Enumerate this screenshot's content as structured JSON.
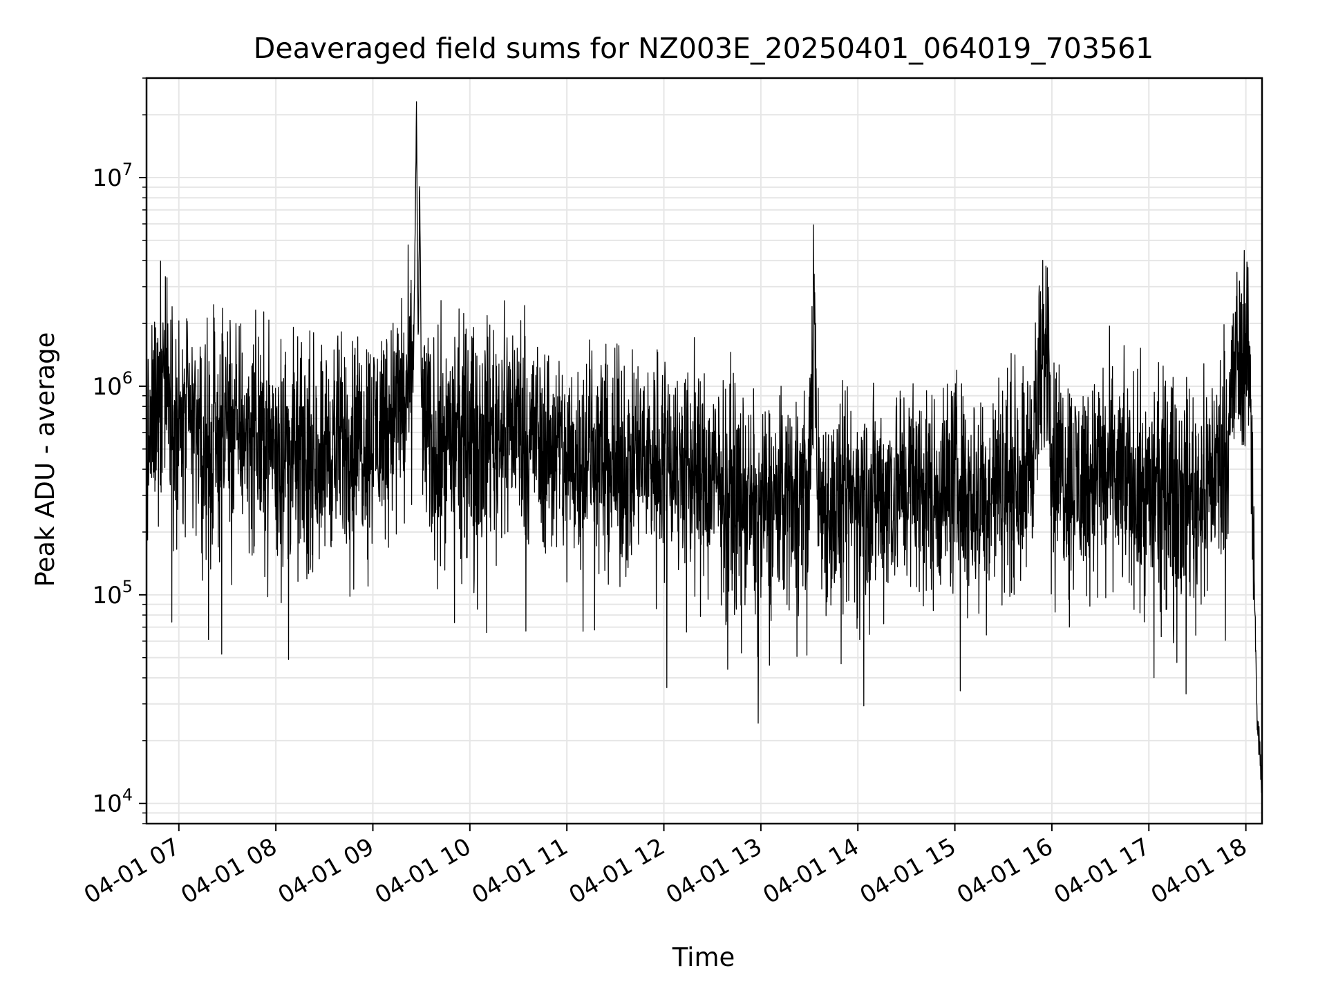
{
  "chart_data": {
    "type": "line",
    "title": "Deaveraged field sums for NZ003E_20250401_064019_703561",
    "xlabel": "Time",
    "ylabel": "Peak ADU - average",
    "yscale": "log",
    "ylim": [
      8000,
      30000000
    ],
    "xlim": [
      "2025-04-01 06:40",
      "2025-04-01 18:10"
    ],
    "grid": true,
    "line_color": "#000000",
    "grid_color": "#e6e6e6",
    "x_ticks": [
      "04-01 07",
      "04-01 08",
      "04-01 09",
      "04-01 10",
      "04-01 11",
      "04-01 12",
      "04-01 13",
      "04-01 14",
      "04-01 15",
      "04-01 16",
      "04-01 17",
      "04-01 18"
    ],
    "y_ticks": [
      {
        "value": 10000,
        "base": "10",
        "exp": "4"
      },
      {
        "value": 100000,
        "base": "10",
        "exp": "5"
      },
      {
        "value": 1000000,
        "base": "10",
        "exp": "6"
      },
      {
        "value": 10000000,
        "base": "10",
        "exp": "7"
      }
    ],
    "series": [
      {
        "x": [
          "2025-04-01 06:40",
          "2025-04-01 06:45",
          "2025-04-01 06:50",
          "2025-04-01 06:55",
          "2025-04-01 07:00",
          "2025-04-01 07:10",
          "2025-04-01 07:20",
          "2025-04-01 07:30",
          "2025-04-01 07:45",
          "2025-04-01 08:00",
          "2025-04-01 08:15",
          "2025-04-01 08:30",
          "2025-04-01 08:45",
          "2025-04-01 09:00",
          "2025-04-01 09:15",
          "2025-04-01 09:25",
          "2025-04-01 09:27",
          "2025-04-01 09:28",
          "2025-04-01 09:29",
          "2025-04-01 09:30",
          "2025-04-01 09:35",
          "2025-04-01 09:45",
          "2025-04-01 10:00",
          "2025-04-01 10:15",
          "2025-04-01 10:30",
          "2025-04-01 10:45",
          "2025-04-01 11:00",
          "2025-04-01 11:15",
          "2025-04-01 11:30",
          "2025-04-01 11:45",
          "2025-04-01 12:00",
          "2025-04-01 12:15",
          "2025-04-01 12:30",
          "2025-04-01 12:45",
          "2025-04-01 13:00",
          "2025-04-01 13:15",
          "2025-04-01 13:30",
          "2025-04-01 13:33",
          "2025-04-01 13:35",
          "2025-04-01 13:45",
          "2025-04-01 14:00",
          "2025-04-01 14:15",
          "2025-04-01 14:30",
          "2025-04-01 14:45",
          "2025-04-01 15:00",
          "2025-04-01 15:15",
          "2025-04-01 15:30",
          "2025-04-01 15:45",
          "2025-04-01 15:58",
          "2025-04-01 16:00",
          "2025-04-01 16:15",
          "2025-04-01 16:30",
          "2025-04-01 16:45",
          "2025-04-01 17:00",
          "2025-04-01 17:15",
          "2025-04-01 17:30",
          "2025-04-01 17:45",
          "2025-04-01 17:55",
          "2025-04-01 18:00",
          "2025-04-01 18:03",
          "2025-04-01 18:05",
          "2025-04-01 18:07",
          "2025-04-01 18:10"
        ],
        "y": [
          450000,
          700000,
          1400000,
          800000,
          600000,
          650000,
          500000,
          700000,
          600000,
          550000,
          450000,
          500000,
          550000,
          600000,
          800000,
          1000000,
          21000000,
          1500000,
          8500000,
          900000,
          500000,
          550000,
          600000,
          650000,
          700000,
          550000,
          450000,
          500000,
          400000,
          450000,
          500000,
          400000,
          350000,
          300000,
          250000,
          300000,
          350000,
          3200000,
          300000,
          250000,
          300000,
          300000,
          350000,
          300000,
          350000,
          300000,
          350000,
          400000,
          1800000,
          450000,
          350000,
          400000,
          350000,
          300000,
          350000,
          300000,
          450000,
          1400000,
          1800000,
          1000000,
          150000,
          25000,
          12000
        ],
        "noise": 0.75
      }
    ]
  }
}
